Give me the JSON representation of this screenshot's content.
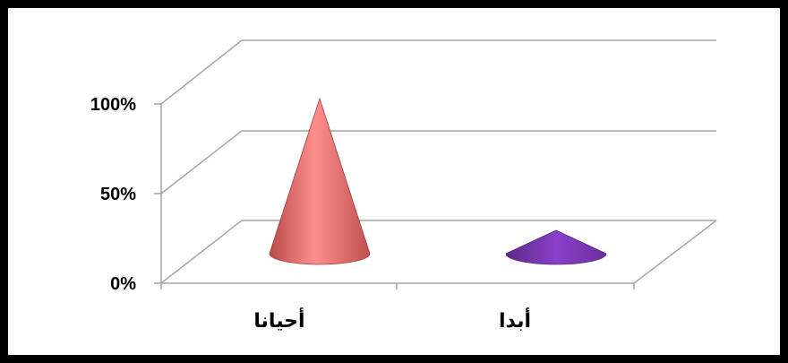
{
  "chart_data": {
    "type": "bar",
    "subtype": "3d-cone",
    "categories": [
      "أحيانا",
      "أبدا"
    ],
    "series": [
      {
        "values": [
          100,
          0
        ]
      }
    ],
    "ylim": [
      0,
      100
    ],
    "yticks": [
      "0%",
      "50%",
      "100%"
    ],
    "grid": true,
    "legend": "none",
    "colors": {
      "cone_1": "#e06666",
      "cone_2": "#7030a0",
      "grid": "#a6a6a6",
      "border": "#000000"
    }
  }
}
